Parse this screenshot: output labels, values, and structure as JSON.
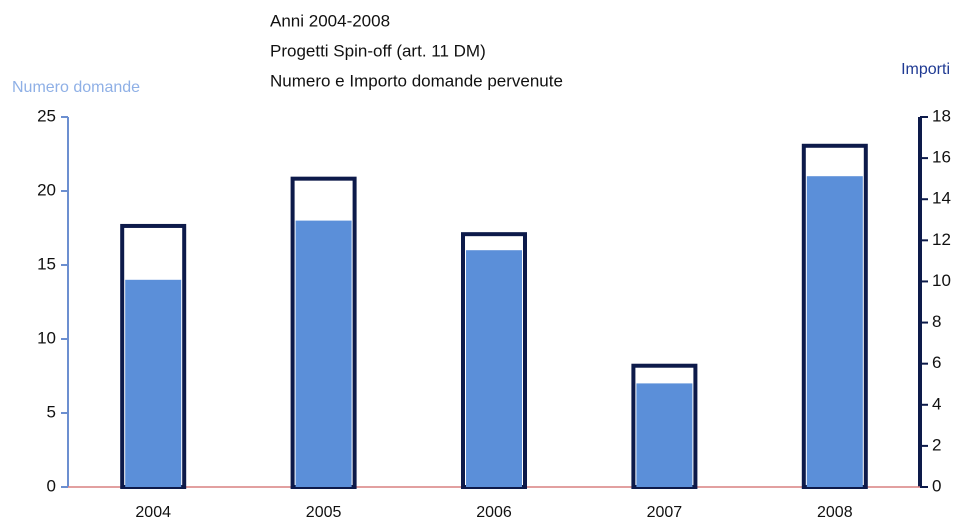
{
  "chart_data": {
    "type": "bar",
    "title": "Anni 2004-2008",
    "subtitle": [
      "Progetti Spin-off  (art. 11 DM)",
      "Numero e Importo domande pervenute"
    ],
    "categories": [
      "2004",
      "2005",
      "2006",
      "2007",
      "2008"
    ],
    "series": [
      {
        "name": "Numero domande",
        "color": "#5b8fd9",
        "values": [
          14,
          18,
          16,
          7,
          21
        ]
      },
      {
        "name": "Importi",
        "color": "#0d1a4a",
        "axis": "y2",
        "values": [
          12.7,
          15,
          12.3,
          5.9,
          16.6
        ]
      }
    ],
    "ylim": [
      0,
      25
    ],
    "yticks": [
      0,
      5,
      10,
      15,
      20,
      25
    ],
    "y2lim": [
      0,
      18
    ],
    "y2ticks": [
      0,
      2,
      4,
      6,
      8,
      10,
      12,
      14,
      16,
      18
    ]
  }
}
